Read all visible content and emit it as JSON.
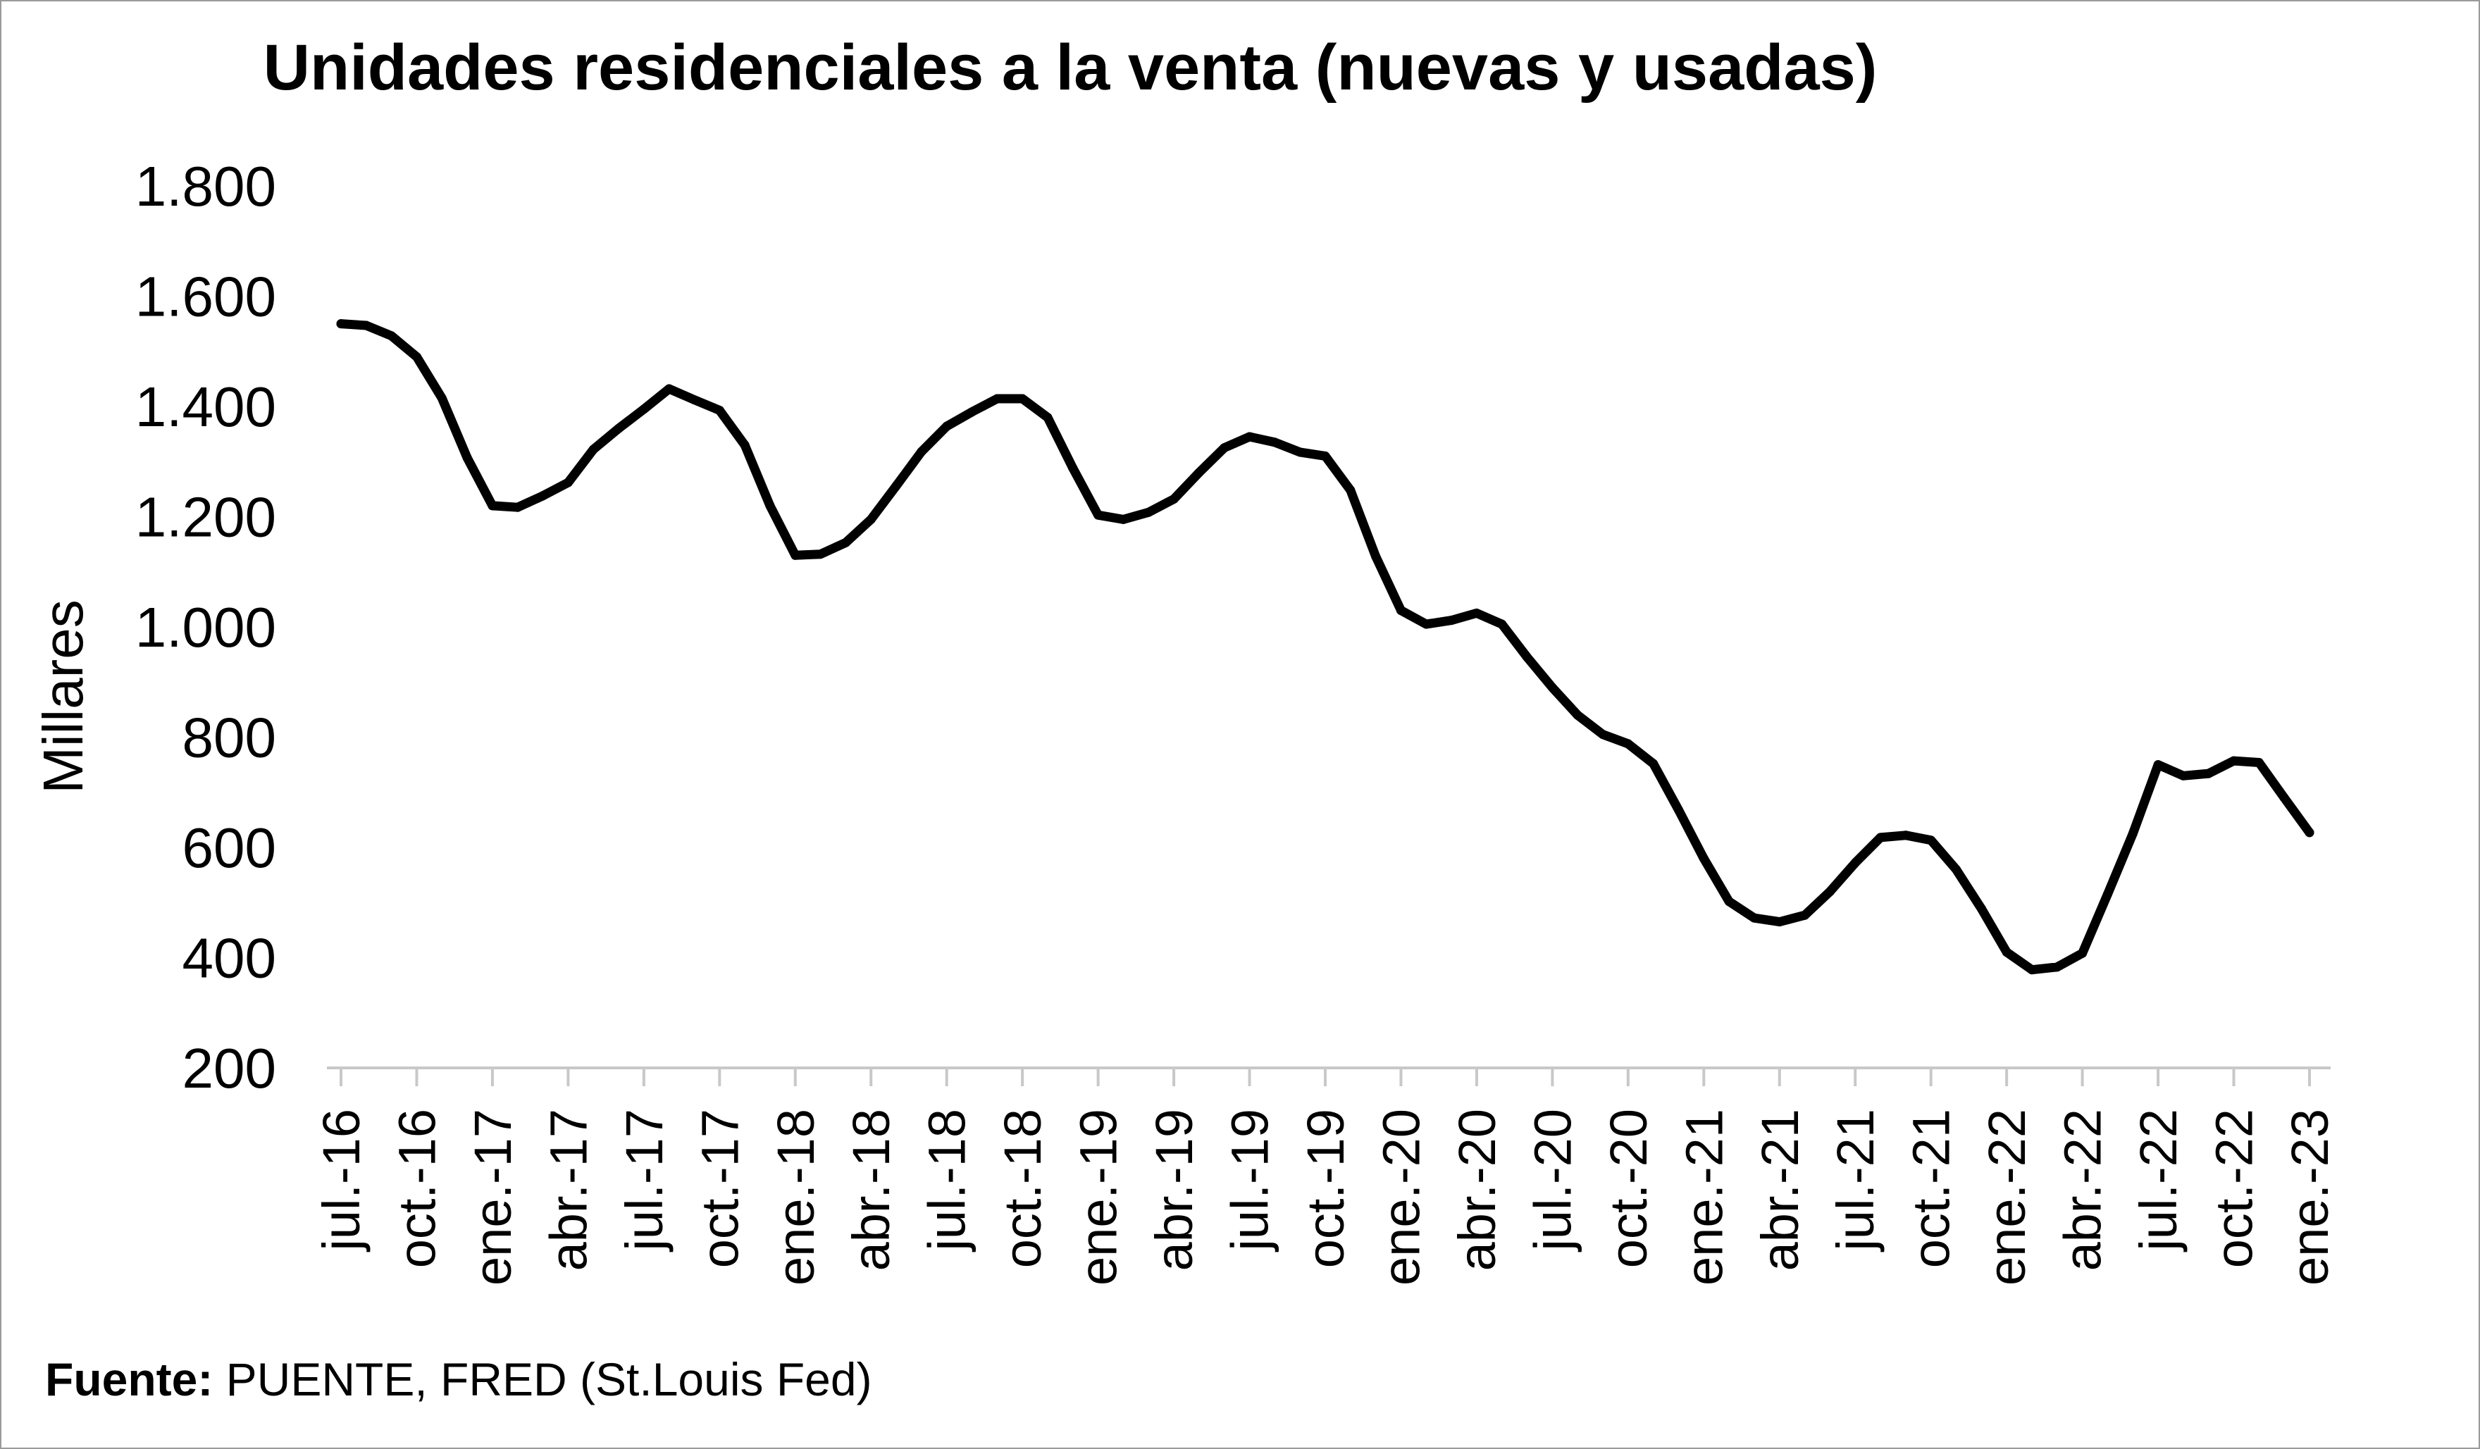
{
  "chart_data": {
    "type": "line",
    "title": "Unidades residenciales a la venta (nuevas y usadas)",
    "ylabel": "Millares",
    "xlabel": "",
    "ylim": [
      200,
      1800
    ],
    "yticks": [
      200,
      400,
      600,
      800,
      1000,
      1200,
      1400,
      1600,
      1800
    ],
    "ytick_labels": [
      "200",
      "400",
      "600",
      "800",
      "1.000",
      "1.200",
      "1.400",
      "1.600",
      "1.800"
    ],
    "xtick_labels": [
      "jul.-16",
      "oct.-16",
      "ene.-17",
      "abr.-17",
      "jul.-17",
      "oct.-17",
      "ene.-18",
      "abr.-18",
      "jul.-18",
      "oct.-18",
      "ene.-19",
      "abr.-19",
      "jul.-19",
      "oct.-19",
      "ene.-20",
      "abr.-20",
      "jul.-20",
      "oct.-20",
      "ene.-21",
      "abr.-21",
      "jul.-21",
      "oct.-21",
      "ene.-22",
      "abr.-22",
      "jul.-22",
      "oct.-22",
      "ene.-23"
    ],
    "grid": false,
    "legend": "none",
    "line_color": "#000000",
    "x": [
      "2016-07",
      "2016-08",
      "2016-09",
      "2016-10",
      "2016-11",
      "2016-12",
      "2017-01",
      "2017-02",
      "2017-03",
      "2017-04",
      "2017-05",
      "2017-06",
      "2017-07",
      "2017-08",
      "2017-09",
      "2017-10",
      "2017-11",
      "2017-12",
      "2018-01",
      "2018-02",
      "2018-03",
      "2018-04",
      "2018-05",
      "2018-06",
      "2018-07",
      "2018-08",
      "2018-09",
      "2018-10",
      "2018-11",
      "2018-12",
      "2019-01",
      "2019-02",
      "2019-03",
      "2019-04",
      "2019-05",
      "2019-06",
      "2019-07",
      "2019-08",
      "2019-09",
      "2019-10",
      "2019-11",
      "2019-12",
      "2020-01",
      "2020-02",
      "2020-03",
      "2020-04",
      "2020-05",
      "2020-06",
      "2020-07",
      "2020-08",
      "2020-09",
      "2020-10",
      "2020-11",
      "2020-12",
      "2021-01",
      "2021-02",
      "2021-03",
      "2021-04",
      "2021-05",
      "2021-06",
      "2021-07",
      "2021-08",
      "2021-09",
      "2021-10",
      "2021-11",
      "2021-12",
      "2022-01",
      "2022-02",
      "2022-03",
      "2022-04",
      "2022-05",
      "2022-06",
      "2022-07",
      "2022-08",
      "2022-09",
      "2022-10",
      "2022-11",
      "2022-12",
      "2023-01"
    ],
    "series": [
      {
        "values": [
          1550,
          1547,
          1528,
          1490,
          1415,
          1307,
          1220,
          1217,
          1238,
          1262,
          1322,
          1360,
          1395,
          1432,
          1412,
          1393,
          1330,
          1220,
          1130,
          1132,
          1153,
          1195,
          1256,
          1318,
          1364,
          1390,
          1414,
          1414,
          1380,
          1288,
          1203,
          1195,
          1208,
          1232,
          1280,
          1325,
          1345,
          1335,
          1317,
          1310,
          1248,
          1128,
          1030,
          1005,
          1012,
          1025,
          1005,
          945,
          890,
          840,
          805,
          788,
          752,
          668,
          580,
          502,
          472,
          465,
          477,
          520,
          572,
          618,
          622,
          613,
          560,
          489,
          410,
          378,
          383,
          408,
          515,
          625,
          750,
          730,
          734,
          757,
          754,
          690,
          627
        ]
      }
    ]
  },
  "source": {
    "label": "Fuente:",
    "text": " PUENTE, FRED (St.Louis Fed)"
  }
}
